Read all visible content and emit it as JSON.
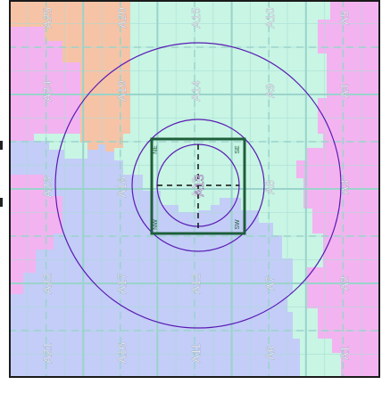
{
  "map": {
    "colors": {
      "pink": "#f3b3f0",
      "orange": "#f7c3a6",
      "mint": "#c8f5e4",
      "lavender": "#c3cdf7",
      "grid_line": "#9ad3cb",
      "minor_line": "#a8ddd5",
      "outline": "#1a1a1a",
      "selection": "#1e5e3a",
      "circle": "#5a1ab4",
      "crosshair": "#111111"
    },
    "columns": [
      {
        "labels": [
          "A25",
          "A24",
          "A23",
          "A22",
          "A21"
        ]
      },
      {
        "labels": [
          "A20",
          "A19",
          "A18",
          "A17",
          "A16"
        ]
      },
      {
        "labels": [
          "A15",
          "A14",
          "A13",
          "A12",
          "A11"
        ]
      },
      {
        "labels": [
          "A10",
          "A9",
          "A8",
          "A7",
          "A6"
        ]
      },
      {
        "labels": [
          "A5",
          "A4",
          "A3",
          "A2",
          "A1"
        ]
      }
    ],
    "selection": {
      "cell": "A13",
      "corners": {
        "nw": "NE",
        "ne": "SE",
        "sw": "NW",
        "se": "SW"
      }
    },
    "range_rings": {
      "count": 3,
      "style": "concentric"
    }
  }
}
